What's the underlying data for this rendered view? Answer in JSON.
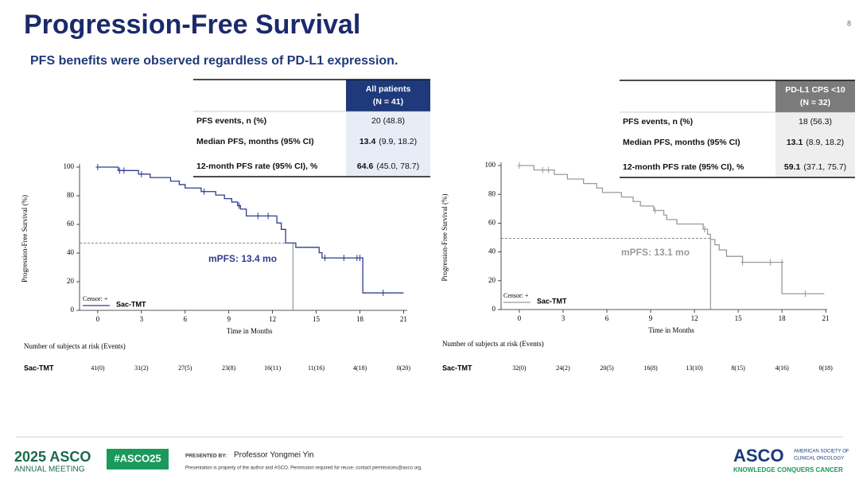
{
  "header": {
    "title": "Progression-Free Survival",
    "page_number": "8",
    "subtitle": "PFS benefits were observed regardless of PD-L1 expression."
  },
  "tables": [
    {
      "header": [
        "All patients",
        "(N = 41)"
      ],
      "header_color": "#1f3a7a",
      "cell_color": "#e6edf7",
      "rows": [
        {
          "label": "PFS events, n (%)",
          "value": "20 (48.8)"
        },
        {
          "label": "Median PFS, months (95% CI)",
          "bold": "13.4",
          "value": "(9.9, 18.2)"
        },
        {
          "label": "12-month PFS rate (95% CI), %",
          "bold": "64.6",
          "value": "(45.0, 78.7)"
        }
      ]
    },
    {
      "header": [
        "PD-L1 CPS <10",
        "(N = 32)"
      ],
      "header_color": "#7b7b7b",
      "cell_color": "#eeeeee",
      "rows": [
        {
          "label": "PFS events, n (%)",
          "value": "18 (56.3)"
        },
        {
          "label": "Median PFS, months (95% CI)",
          "bold": "13.1",
          "value": "(8.9, 18.2)"
        },
        {
          "label": "12-month PFS rate (95% CI), %",
          "bold": "59.1",
          "value": "(37.1, 75.7)"
        }
      ]
    }
  ],
  "chart_data": [
    {
      "type": "line",
      "y_label": "Progression-Free Survival (%)",
      "x_label": "Time in Months",
      "xlim": [
        -1.25,
        21.25
      ],
      "xticks": [
        0,
        3,
        6,
        9,
        12,
        15,
        18,
        21
      ],
      "ylim": [
        0,
        100
      ],
      "yticks": [
        0,
        20,
        40,
        60,
        80,
        100
      ],
      "series": [
        {
          "name": "Sac-TMT",
          "color": "#2e3d8f",
          "x": [
            0,
            1.4,
            1.4,
            2.8,
            2.8,
            3.6,
            3.6,
            5.0,
            5.0,
            5.6,
            5.6,
            6.0,
            6.0,
            7.1,
            7.1,
            8.1,
            8.1,
            8.7,
            8.7,
            9.2,
            9.2,
            9.6,
            9.6,
            9.8,
            9.8,
            10.2,
            10.2,
            12.3,
            12.3,
            12.6,
            12.6,
            12.9,
            12.9,
            13.6,
            13.6,
            15.2,
            15.2,
            15.4,
            15.4,
            18.2,
            18.2,
            21.0
          ],
          "values": [
            100,
            100,
            97.6,
            97.6,
            95.1,
            95.1,
            92.7,
            92.7,
            90.2,
            90.2,
            87.8,
            87.8,
            85.4,
            85.4,
            82.9,
            82.9,
            80.5,
            80.5,
            78.0,
            78.0,
            75.6,
            75.6,
            73.1,
            73.1,
            70.7,
            70.7,
            65.9,
            65.9,
            61.0,
            61.0,
            56.5,
            56.5,
            47.0,
            47.0,
            44.0,
            44.0,
            40.2,
            40.2,
            36.6,
            36.6,
            12.2,
            12.2
          ]
        }
      ],
      "censors": {
        "legend": "Censor: +",
        "x": [
          0,
          1.5,
          1.8,
          3.0,
          7.3,
          9.7,
          11.0,
          11.7,
          15.6,
          16.9,
          17.8,
          18.0,
          19.6
        ],
        "values": [
          100,
          97.6,
          97.6,
          95.1,
          82.9,
          73.1,
          65.9,
          65.9,
          36.6,
          36.6,
          36.6,
          36.6,
          12.2
        ]
      },
      "median": {
        "label": "mPFS: 13.4 mo",
        "x": 13.4,
        "y": 47
      },
      "risk_table": {
        "title": "Number of subjects at risk (Events)",
        "values": [
          "41(0)",
          "31(2)",
          "27(5)",
          "23(8)",
          "16(11)",
          "11(16)",
          "4(18)",
          "0(20)"
        ]
      }
    },
    {
      "type": "line",
      "y_label": "Progression-Free Survival (%)",
      "x_label": "Time in Months",
      "xlim": [
        -1.25,
        21.1
      ],
      "xticks": [
        0,
        3,
        6,
        9,
        12,
        15,
        18,
        21
      ],
      "ylim": [
        0,
        100
      ],
      "yticks": [
        0,
        20,
        40,
        60,
        80,
        100
      ],
      "series": [
        {
          "name": "Sac-TMT",
          "color": "#9a9a9a",
          "x": [
            0,
            1.0,
            1.0,
            2.4,
            2.4,
            3.3,
            3.3,
            4.4,
            4.4,
            5.3,
            5.3,
            5.7,
            5.7,
            7.0,
            7.0,
            7.8,
            7.8,
            8.3,
            8.3,
            9.2,
            9.2,
            9.9,
            9.9,
            10.1,
            10.1,
            10.8,
            10.8,
            12.6,
            12.6,
            12.9,
            12.9,
            13.1,
            13.1,
            13.4,
            13.4,
            13.7,
            13.7,
            14.2,
            14.2,
            15.3,
            15.3,
            18.0,
            18.0,
            20.9
          ],
          "values": [
            100,
            100,
            96.9,
            96.9,
            93.8,
            93.8,
            90.6,
            90.6,
            87.5,
            87.5,
            84.4,
            84.4,
            81.3,
            81.3,
            78.1,
            78.1,
            75.0,
            75.0,
            71.9,
            71.9,
            68.8,
            68.8,
            65.6,
            65.6,
            62.5,
            62.5,
            59.4,
            59.4,
            55.8,
            55.8,
            52.2,
            52.2,
            48.6,
            48.6,
            45.0,
            45.0,
            41.4,
            41.4,
            36.9,
            36.9,
            32.8,
            32.8,
            11.0,
            11.0
          ]
        }
      ],
      "censors": {
        "legend": "Censor: +",
        "x": [
          0,
          1.6,
          2.0,
          9.3,
          12.7,
          15.3,
          17.2,
          18.0,
          19.6
        ],
        "values": [
          100,
          96.9,
          96.9,
          68.8,
          55.8,
          32.8,
          32.8,
          32.8,
          11.0
        ]
      },
      "median": {
        "label": "mPFS: 13.1 mo",
        "x": 13.1,
        "y": 49.5
      },
      "risk_table": {
        "title": "Number of subjects at risk (Events)",
        "values": [
          "32(0)",
          "24(2)",
          "20(5)",
          "16(8)",
          "13(10)",
          "8(15)",
          "4(16)",
          "0(18)"
        ]
      }
    }
  ],
  "footer": {
    "meeting_year": "2025 ASCO",
    "meeting": "ANNUAL MEETING",
    "hashtag": "#ASCO25",
    "presented_by": "PRESENTED BY:",
    "presenter": "Professor Yongmei Yin",
    "notice": "Presentation is property of the author and ASCO. Permission required for reuse; contact permissions@asco.org.",
    "logo": "ASCO",
    "society_1": "AMERICAN SOCIETY OF",
    "society_2": "CLINICAL ONCOLOGY",
    "tagline": "KNOWLEDGE CONQUERS CANCER"
  }
}
